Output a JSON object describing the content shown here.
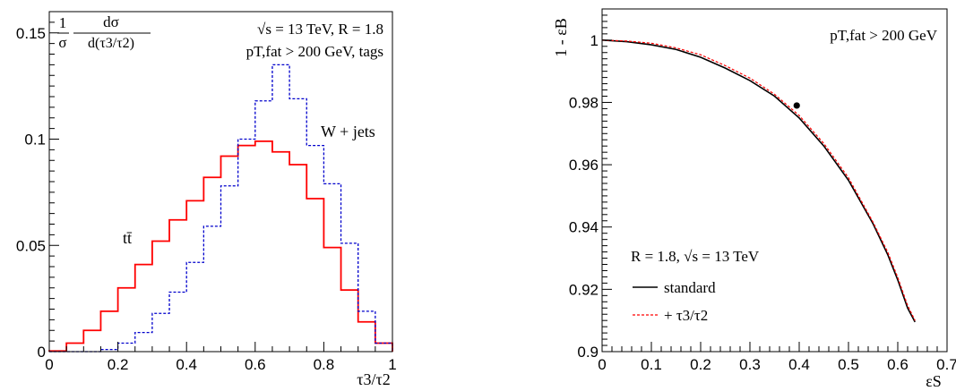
{
  "chart_data": [
    {
      "type": "histogram",
      "ylabel_num": "1",
      "ylabel_den": "σ",
      "ylabel_frac_num": "dσ",
      "ylabel_frac_den": "d(τ3/τ2)",
      "xlabel": "τ3/τ2",
      "annotation_line1": "√s = 13 TeV, R = 1.8",
      "annotation_line2": "pT,fat > 200 GeV, tags",
      "xlim": [
        0,
        1
      ],
      "ylim": [
        0,
        0.16
      ],
      "x_ticks": [
        "0",
        "0.2",
        "0.4",
        "0.6",
        "0.8",
        "1"
      ],
      "y_ticks": [
        "0",
        "0.05",
        "0.1",
        "0.15"
      ],
      "bin_edges": [
        0.0,
        0.05,
        0.1,
        0.15,
        0.2,
        0.25,
        0.3,
        0.35,
        0.4,
        0.45,
        0.5,
        0.55,
        0.6,
        0.65,
        0.7,
        0.75,
        0.8,
        0.85,
        0.9,
        0.95,
        1.0
      ],
      "series": [
        {
          "name": "tt̄",
          "color": "#ff0000",
          "style": "solid",
          "values": [
            0.0003,
            0.004,
            0.01,
            0.019,
            0.03,
            0.041,
            0.052,
            0.062,
            0.071,
            0.082,
            0.092,
            0.097,
            0.099,
            0.094,
            0.088,
            0.072,
            0.049,
            0.029,
            0.014,
            0.004
          ]
        },
        {
          "name": "W + jets",
          "color": "#0000cc",
          "style": "dashed",
          "values": [
            0.0,
            0.0,
            0.0,
            0.001,
            0.004,
            0.009,
            0.018,
            0.028,
            0.042,
            0.059,
            0.078,
            0.1,
            0.118,
            0.135,
            0.119,
            0.097,
            0.079,
            0.051,
            0.019,
            0.004
          ]
        }
      ]
    },
    {
      "type": "line",
      "xlabel": "εS",
      "ylabel": "1 - εB",
      "annotation": "pT,fat > 200 GeV",
      "legend_title": "R = 1.8, √s = 13 TeV",
      "xlim": [
        0,
        0.7
      ],
      "ylim": [
        0.9,
        1.01
      ],
      "x_ticks": [
        "0",
        "0.1",
        "0.2",
        "0.3",
        "0.4",
        "0.5",
        "0.6",
        "0.7"
      ],
      "y_ticks": [
        "0.9",
        "0.92",
        "0.94",
        "0.96",
        "0.98",
        "1"
      ],
      "series": [
        {
          "name": "standard",
          "color": "#000000",
          "style": "solid",
          "x": [
            0.0,
            0.05,
            0.1,
            0.15,
            0.2,
            0.25,
            0.3,
            0.35,
            0.4,
            0.45,
            0.5,
            0.55,
            0.58,
            0.6,
            0.62,
            0.635
          ],
          "y": [
            1.0,
            0.9995,
            0.9985,
            0.997,
            0.9945,
            0.991,
            0.987,
            0.982,
            0.975,
            0.966,
            0.955,
            0.941,
            0.931,
            0.923,
            0.914,
            0.9095
          ]
        },
        {
          "name": "+ τ3/τ2",
          "color": "#ff0000",
          "style": "dashed",
          "x": [
            0.0,
            0.05,
            0.1,
            0.15,
            0.2,
            0.25,
            0.3,
            0.35,
            0.4,
            0.45,
            0.5,
            0.55,
            0.58,
            0.6,
            0.62,
            0.635
          ],
          "y": [
            1.0,
            0.9997,
            0.999,
            0.9975,
            0.9953,
            0.9918,
            0.9878,
            0.9826,
            0.9758,
            0.9668,
            0.9558,
            0.9415,
            0.9318,
            0.9238,
            0.9148,
            0.91
          ]
        }
      ],
      "marker": {
        "x": 0.395,
        "y": 0.979
      }
    }
  ]
}
